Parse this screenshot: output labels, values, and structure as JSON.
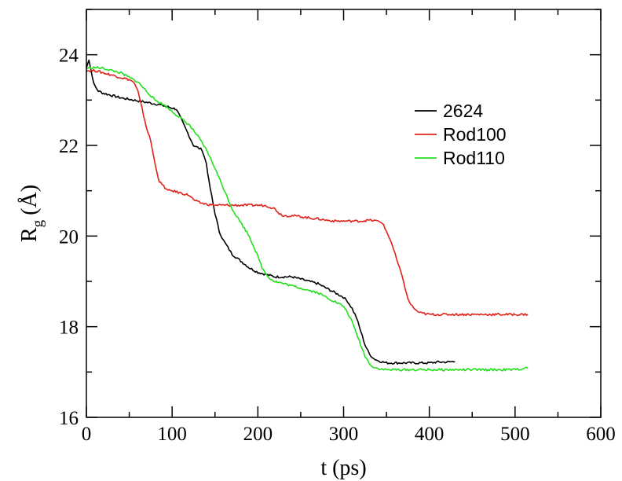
{
  "chart_data": {
    "type": "line",
    "title": "",
    "xlabel": "t (ps)",
    "ylabel": {
      "main": "R",
      "subscript": "g",
      "unit": "(Å)"
    },
    "xlim": [
      0,
      600
    ],
    "ylim": [
      16,
      25
    ],
    "x_ticks": [
      0,
      100,
      200,
      300,
      400,
      500,
      600
    ],
    "y_ticks": [
      16,
      18,
      20,
      22,
      24
    ],
    "x_minor_step": 50,
    "y_minor_step": 1,
    "grid": false,
    "legend_position": "upper-right",
    "series": [
      {
        "name": "2624",
        "color": "#000000",
        "x": [
          0,
          3,
          7,
          10,
          14,
          20,
          30,
          40,
          55,
          70,
          85,
          95,
          105,
          110,
          115,
          120,
          125,
          130,
          135,
          140,
          143,
          146,
          150,
          155,
          160,
          165,
          170,
          180,
          190,
          200,
          210,
          220,
          230,
          240,
          250,
          260,
          270,
          280,
          290,
          300,
          305,
          310,
          315,
          320,
          325,
          330,
          335,
          340,
          350,
          360,
          370,
          380,
          390,
          400,
          410,
          420,
          430
        ],
        "y": [
          23.7,
          23.9,
          23.5,
          23.3,
          23.2,
          23.15,
          23.1,
          23.05,
          23.0,
          22.95,
          22.9,
          22.85,
          22.8,
          22.6,
          22.4,
          22.2,
          22.0,
          21.95,
          21.9,
          21.6,
          21.2,
          20.9,
          20.5,
          20.1,
          19.9,
          19.75,
          19.6,
          19.45,
          19.3,
          19.2,
          19.15,
          19.1,
          19.1,
          19.1,
          19.05,
          19.0,
          18.95,
          18.85,
          18.75,
          18.65,
          18.55,
          18.4,
          18.2,
          17.9,
          17.6,
          17.4,
          17.3,
          17.25,
          17.2,
          17.2,
          17.2,
          17.2,
          17.2,
          17.2,
          17.22,
          17.22,
          17.23
        ]
      },
      {
        "name": "Rod100",
        "color": "#e0221b",
        "x": [
          0,
          10,
          20,
          30,
          40,
          50,
          55,
          60,
          65,
          70,
          75,
          80,
          85,
          90,
          95,
          100,
          110,
          120,
          125,
          130,
          140,
          150,
          160,
          170,
          180,
          190,
          200,
          210,
          220,
          225,
          230,
          240,
          250,
          260,
          270,
          280,
          290,
          300,
          310,
          320,
          330,
          340,
          345,
          350,
          355,
          360,
          365,
          370,
          375,
          380,
          385,
          390,
          400,
          410,
          420,
          430,
          440,
          450,
          460,
          470,
          480,
          490,
          500,
          510,
          515
        ],
        "y": [
          23.65,
          23.65,
          23.6,
          23.55,
          23.5,
          23.45,
          23.4,
          23.2,
          22.8,
          22.4,
          22.1,
          21.6,
          21.2,
          21.1,
          21.0,
          21.0,
          20.95,
          20.9,
          20.8,
          20.75,
          20.7,
          20.68,
          20.68,
          20.68,
          20.68,
          20.68,
          20.68,
          20.67,
          20.6,
          20.5,
          20.45,
          20.45,
          20.43,
          20.4,
          20.38,
          20.35,
          20.33,
          20.33,
          20.33,
          20.33,
          20.35,
          20.33,
          20.3,
          20.1,
          19.9,
          19.6,
          19.3,
          19.0,
          18.6,
          18.45,
          18.35,
          18.3,
          18.27,
          18.27,
          18.27,
          18.27,
          18.27,
          18.27,
          18.27,
          18.27,
          18.27,
          18.27,
          18.27,
          18.27,
          18.27
        ]
      },
      {
        "name": "Rod110",
        "color": "#22e01b",
        "x": [
          0,
          10,
          20,
          30,
          40,
          50,
          60,
          70,
          80,
          90,
          100,
          110,
          120,
          130,
          140,
          150,
          160,
          170,
          180,
          190,
          200,
          205,
          210,
          215,
          220,
          230,
          240,
          250,
          260,
          270,
          280,
          290,
          300,
          305,
          310,
          315,
          320,
          325,
          330,
          335,
          340,
          345,
          350,
          360,
          370,
          380,
          390,
          400,
          410,
          420,
          430,
          440,
          450,
          460,
          470,
          480,
          490,
          500,
          510,
          515
        ],
        "y": [
          23.7,
          23.72,
          23.7,
          23.65,
          23.6,
          23.5,
          23.4,
          23.2,
          23.0,
          22.9,
          22.75,
          22.6,
          22.45,
          22.2,
          21.9,
          21.5,
          21.05,
          20.6,
          20.3,
          20.0,
          19.55,
          19.3,
          19.15,
          19.05,
          19.0,
          18.95,
          18.9,
          18.85,
          18.8,
          18.75,
          18.65,
          18.55,
          18.45,
          18.3,
          18.1,
          17.85,
          17.6,
          17.35,
          17.2,
          17.1,
          17.08,
          17.06,
          17.05,
          17.05,
          17.05,
          17.05,
          17.05,
          17.05,
          17.05,
          17.05,
          17.05,
          17.05,
          17.05,
          17.05,
          17.05,
          17.05,
          17.05,
          17.05,
          17.08,
          17.08
        ]
      }
    ]
  }
}
